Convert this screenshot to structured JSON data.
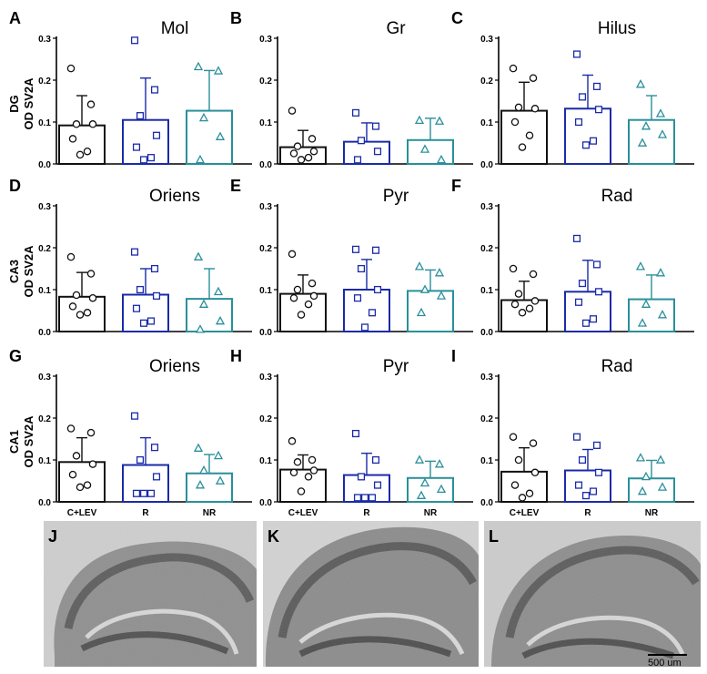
{
  "colors": {
    "clev": "#111111",
    "r": "#1a2aa8",
    "nr": "#2a8f9a"
  },
  "groups": [
    "C+LEV",
    "R",
    "NR"
  ],
  "row_labels": [
    {
      "line1": "DG",
      "line2": "OD SV2A"
    },
    {
      "line1": "CA3",
      "line2": "OD SV2A"
    },
    {
      "line1": "CA1",
      "line2": "OD SV2A"
    }
  ],
  "chart_data": [
    {
      "type": "bar",
      "panel": "A",
      "title": "Mol",
      "categories": [
        "C+LEV",
        "R",
        "NR"
      ],
      "ylim": [
        0,
        0.3
      ],
      "yticks": [
        "0.0",
        "0.1",
        "0.2",
        "0.3"
      ],
      "means": [
        0.092,
        0.105,
        0.127
      ],
      "sd": [
        0.071,
        0.1,
        0.096
      ],
      "points": [
        [
          0.228,
          0.142,
          0.095,
          0.095,
          0.06,
          0.03,
          0.022
        ],
        [
          0.295,
          0.177,
          0.115,
          0.068,
          0.04,
          0.015,
          0.01
        ],
        [
          0.232,
          0.222,
          0.11,
          0.065,
          0.01
        ]
      ]
    },
    {
      "type": "bar",
      "panel": "B",
      "title": "Gr",
      "categories": [
        "C+LEV",
        "R",
        "NR"
      ],
      "ylim": [
        0,
        0.3
      ],
      "yticks": [
        "0.0",
        "0.1",
        "0.2",
        "0.3"
      ],
      "means": [
        0.04,
        0.053,
        0.057
      ],
      "sd": [
        0.04,
        0.045,
        0.052
      ],
      "points": [
        [
          0.127,
          0.06,
          0.042,
          0.03,
          0.025,
          0.015,
          0.01
        ],
        [
          0.122,
          0.09,
          0.056,
          0.03,
          0.01
        ],
        [
          0.104,
          0.102,
          0.035,
          0.01
        ]
      ]
    },
    {
      "type": "bar",
      "panel": "C",
      "title": "Hilus",
      "categories": [
        "C+LEV",
        "R",
        "NR"
      ],
      "ylim": [
        0,
        0.3
      ],
      "yticks": [
        "0.0",
        "0.1",
        "0.2",
        "0.3"
      ],
      "means": [
        0.127,
        0.132,
        0.105
      ],
      "sd": [
        0.068,
        0.08,
        0.058
      ],
      "points": [
        [
          0.228,
          0.205,
          0.135,
          0.132,
          0.1,
          0.068,
          0.04
        ],
        [
          0.262,
          0.185,
          0.16,
          0.13,
          0.1,
          0.055,
          0.045
        ],
        [
          0.19,
          0.12,
          0.09,
          0.07,
          0.05
        ]
      ]
    },
    {
      "type": "bar",
      "panel": "D",
      "title": "Oriens",
      "categories": [
        "C+LEV",
        "R",
        "NR"
      ],
      "ylim": [
        0,
        0.3
      ],
      "yticks": [
        "0.0",
        "0.1",
        "0.2",
        "0.3"
      ],
      "means": [
        0.083,
        0.088,
        0.078
      ],
      "sd": [
        0.058,
        0.062,
        0.072
      ],
      "points": [
        [
          0.178,
          0.138,
          0.087,
          0.08,
          0.06,
          0.045,
          0.04
        ],
        [
          0.19,
          0.15,
          0.1,
          0.085,
          0.055,
          0.025,
          0.02
        ],
        [
          0.178,
          0.095,
          0.065,
          0.025,
          0.005
        ]
      ]
    },
    {
      "type": "bar",
      "panel": "E",
      "title": "Pyr",
      "categories": [
        "C+LEV",
        "R",
        "NR"
      ],
      "ylim": [
        0,
        0.3
      ],
      "yticks": [
        "0.0",
        "0.1",
        "0.2",
        "0.3"
      ],
      "means": [
        0.09,
        0.1,
        0.097
      ],
      "sd": [
        0.045,
        0.072,
        0.05
      ],
      "points": [
        [
          0.185,
          0.115,
          0.1,
          0.085,
          0.08,
          0.065,
          0.04
        ],
        [
          0.196,
          0.194,
          0.15,
          0.1,
          0.08,
          0.045,
          0.01
        ],
        [
          0.155,
          0.14,
          0.1,
          0.085,
          0.045
        ]
      ]
    },
    {
      "type": "bar",
      "panel": "F",
      "title": "Rad",
      "categories": [
        "C+LEV",
        "R",
        "NR"
      ],
      "ylim": [
        0,
        0.3
      ],
      "yticks": [
        "0.0",
        "0.1",
        "0.2",
        "0.3"
      ],
      "means": [
        0.075,
        0.095,
        0.077
      ],
      "sd": [
        0.045,
        0.075,
        0.058
      ],
      "points": [
        [
          0.15,
          0.137,
          0.09,
          0.073,
          0.065,
          0.055,
          0.045
        ],
        [
          0.222,
          0.16,
          0.115,
          0.095,
          0.07,
          0.03,
          0.02
        ],
        [
          0.155,
          0.14,
          0.065,
          0.04,
          0.02
        ]
      ]
    },
    {
      "type": "bar",
      "panel": "G",
      "title": "Oriens",
      "categories": [
        "C+LEV",
        "R",
        "NR"
      ],
      "ylim": [
        0,
        0.3
      ],
      "yticks": [
        "0.0",
        "0.1",
        "0.2",
        "0.3"
      ],
      "means": [
        0.095,
        0.088,
        0.068
      ],
      "sd": [
        0.058,
        0.065,
        0.045
      ],
      "points": [
        [
          0.175,
          0.165,
          0.11,
          0.09,
          0.065,
          0.04,
          0.035
        ],
        [
          0.205,
          0.13,
          0.1,
          0.06,
          0.02,
          0.02,
          0.02
        ],
        [
          0.128,
          0.11,
          0.075,
          0.05,
          0.04
        ]
      ]
    },
    {
      "type": "bar",
      "panel": "H",
      "title": "Pyr",
      "categories": [
        "C+LEV",
        "R",
        "NR"
      ],
      "ylim": [
        0,
        0.3
      ],
      "yticks": [
        "0.0",
        "0.1",
        "0.2",
        "0.3"
      ],
      "means": [
        0.077,
        0.064,
        0.057
      ],
      "sd": [
        0.035,
        0.052,
        0.04
      ],
      "points": [
        [
          0.145,
          0.1,
          0.095,
          0.075,
          0.07,
          0.06,
          0.025
        ],
        [
          0.163,
          0.1,
          0.06,
          0.04,
          0.01,
          0.01,
          0.01
        ],
        [
          0.1,
          0.09,
          0.045,
          0.03,
          0.015
        ]
      ]
    },
    {
      "type": "bar",
      "panel": "I",
      "title": "Rad",
      "categories": [
        "C+LEV",
        "R",
        "NR"
      ],
      "ylim": [
        0,
        0.3
      ],
      "yticks": [
        "0.0",
        "0.1",
        "0.2",
        "0.3"
      ],
      "means": [
        0.072,
        0.075,
        0.056
      ],
      "sd": [
        0.057,
        0.05,
        0.043
      ],
      "points": [
        [
          0.155,
          0.14,
          0.1,
          0.07,
          0.04,
          0.02,
          0.01
        ],
        [
          0.155,
          0.135,
          0.1,
          0.07,
          0.04,
          0.025,
          0.015
        ],
        [
          0.105,
          0.1,
          0.06,
          0.035,
          0.025
        ]
      ]
    }
  ],
  "micrographs": [
    {
      "panel": "J"
    },
    {
      "panel": "K"
    },
    {
      "panel": "L"
    }
  ],
  "scale_bar": {
    "label": "500 um"
  }
}
